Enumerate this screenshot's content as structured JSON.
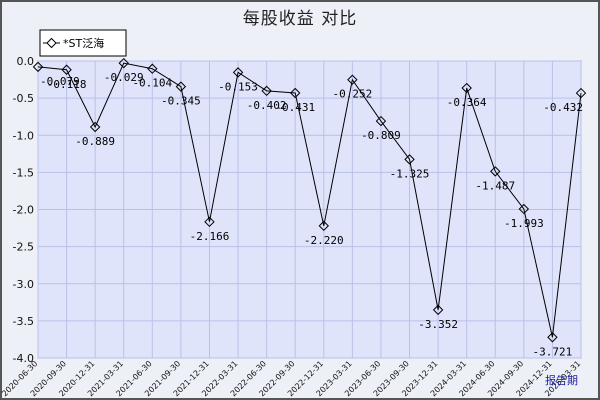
{
  "chart_data": {
    "type": "line",
    "title": "每股收益 对比",
    "xlabel": "报告期",
    "ylabel": "",
    "ylim": [
      -4.0,
      0.0
    ],
    "yticks": [
      "0.0",
      "-0.5",
      "-1.0",
      "-1.5",
      "-2.0",
      "-2.5",
      "-3.0",
      "-3.5",
      "-4.0"
    ],
    "grid": true,
    "legend_position": "top-left",
    "categories": [
      "2020-06-30",
      "2020-09-30",
      "2020-12-31",
      "2021-03-31",
      "2021-06-30",
      "2021-09-30",
      "2021-12-31",
      "2022-03-31",
      "2022-06-30",
      "2022-09-30",
      "2022-12-31",
      "2023-03-31",
      "2023-06-30",
      "2023-09-30",
      "2023-12-31",
      "2024-03-31",
      "2024-06-30",
      "2024-09-30",
      "2024-12-31",
      "2025-03-31"
    ],
    "series": [
      {
        "name": "*ST泛海",
        "values": [
          -0.079,
          -0.118,
          -0.889,
          -0.029,
          -0.104,
          -0.345,
          -2.166,
          -0.153,
          -0.402,
          -0.431,
          -2.22,
          -0.252,
          -0.809,
          -1.325,
          -3.352,
          -0.364,
          -1.487,
          -1.993,
          -3.721,
          -0.432
        ],
        "labels": [
          "-0.079",
          "-0.118",
          "-0.889",
          "-0.029",
          "-0.104",
          "-0.345",
          "-2.166",
          "-0.153",
          "-0.402",
          "-0.431",
          "-2.220",
          "-0.252",
          "-0.809",
          "-1.325",
          "-3.352",
          "-0.364",
          "-1.487",
          "-1.993",
          "-3.721",
          "-0.432"
        ],
        "color": "#000000"
      }
    ]
  },
  "colors": {
    "plot_background": "#dfe4fb",
    "grid": "#b9c1e8",
    "line": "#000000",
    "xlabel": "#1a1aa0"
  }
}
